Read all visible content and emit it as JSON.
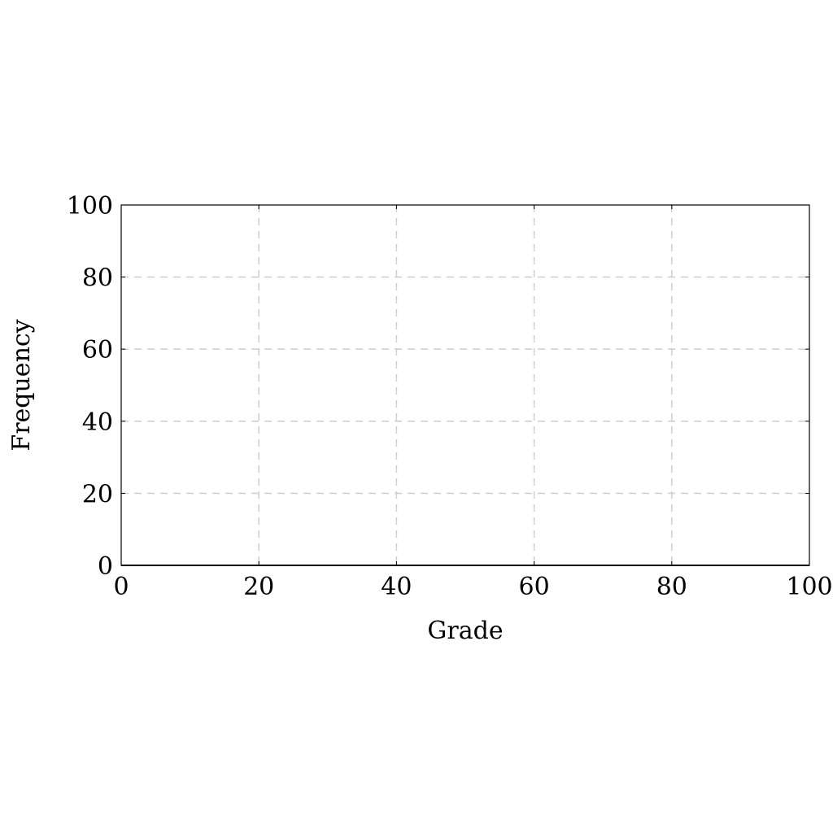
{
  "chart_data": {
    "type": "line",
    "title": "",
    "xlabel": "Grade",
    "ylabel": "Frequency",
    "xlim": [
      0,
      100
    ],
    "ylim": [
      0,
      100
    ],
    "xticks": [
      0,
      20,
      40,
      60,
      80,
      100
    ],
    "yticks": [
      0,
      20,
      40,
      60,
      80,
      100
    ],
    "grid": true,
    "grid_style": "dashed",
    "series": [
      {
        "color": "#000000",
        "x": [
          0,
          100
        ],
        "y": [
          0,
          0
        ]
      }
    ]
  }
}
